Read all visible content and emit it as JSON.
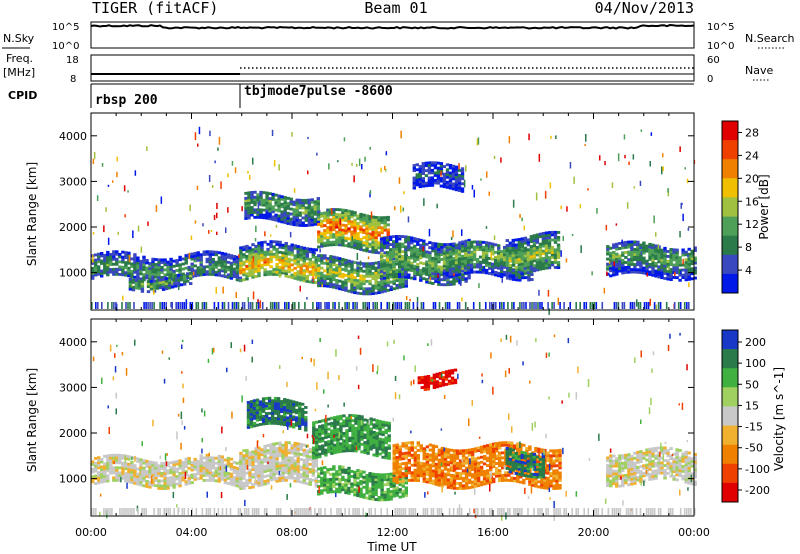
{
  "header": {
    "radar": "TIGER (fitACF)",
    "beam": "Beam 01",
    "date": "04/Nov/2013"
  },
  "aux_panels": {
    "nsky_label": "N.Sky",
    "nsky_ticks": [
      "10^5",
      "10^0"
    ],
    "nsearch_label": "N.Search",
    "nsearch_ticks": [
      "10^5",
      "10^0"
    ],
    "freq_label": "Freq.",
    "freq_unit": "[MHz]",
    "freq_ticks": [
      "18",
      "8"
    ],
    "nave_label": "Nave",
    "nave_ticks": [
      "60",
      "0"
    ],
    "cpid_label": "CPID",
    "cpid_segments": [
      {
        "start_hour": 0,
        "label": "rbsp 200"
      },
      {
        "start_hour": 6,
        "label": "tbjmode7pulse -8600"
      }
    ]
  },
  "chart_data": [
    {
      "type": "heatmap",
      "title": "",
      "xlabel": "Time UT",
      "ylabel": "Slant Range [km]",
      "xlim": [
        0,
        24
      ],
      "ylim": [
        180,
        4500
      ],
      "y_ticks": [
        "1000",
        "2000",
        "3000",
        "4000"
      ],
      "colorbar": {
        "label": "Power [dB]",
        "range": [
          0,
          30
        ],
        "ticks": [
          "4",
          "8",
          "12",
          "16",
          "20",
          "24",
          "28"
        ],
        "colors": [
          "#0018e8",
          "#3a48c0",
          "#2a7a4a",
          "#4ea058",
          "#a0c040",
          "#f0c000",
          "#f08000",
          "#f04000",
          "#e00000"
        ]
      },
      "bands": [
        {
          "start_hour": 0.0,
          "end_hour": 5.9,
          "min_km": 850,
          "max_km": 1400,
          "peak_km": 1050,
          "level": 0.35
        },
        {
          "start_hour": 1.5,
          "end_hour": 4.0,
          "min_km": 650,
          "max_km": 900,
          "peak_km": 780,
          "level": 0.45
        },
        {
          "start_hour": 5.9,
          "end_hour": 9.0,
          "min_km": 850,
          "max_km": 1600,
          "peak_km": 1100,
          "level": 0.7
        },
        {
          "start_hour": 6.1,
          "end_hour": 9.0,
          "min_km": 2100,
          "max_km": 2700,
          "peak_km": 2450,
          "level": 0.4
        },
        {
          "start_hour": 9.0,
          "end_hour": 11.8,
          "min_km": 1500,
          "max_km": 2300,
          "peak_km": 1900,
          "level": 0.8
        },
        {
          "start_hour": 9.0,
          "end_hour": 12.5,
          "min_km": 600,
          "max_km": 1300,
          "peak_km": 950,
          "level": 0.55
        },
        {
          "start_hour": 11.5,
          "end_hour": 15.0,
          "min_km": 800,
          "max_km": 1700,
          "peak_km": 1200,
          "level": 0.45
        },
        {
          "start_hour": 14.0,
          "end_hour": 17.5,
          "min_km": 900,
          "max_km": 1600,
          "peak_km": 1300,
          "level": 0.45
        },
        {
          "start_hour": 16.5,
          "end_hour": 18.6,
          "min_km": 1000,
          "max_km": 1800,
          "peak_km": 1350,
          "level": 0.5
        },
        {
          "start_hour": 20.5,
          "end_hour": 24.0,
          "min_km": 900,
          "max_km": 1600,
          "peak_km": 1300,
          "level": 0.4
        },
        {
          "start_hour": 12.8,
          "end_hour": 14.8,
          "min_km": 2800,
          "max_km": 3300,
          "peak_km": 3100,
          "level": 0.2
        }
      ]
    },
    {
      "type": "heatmap",
      "title": "",
      "xlabel": "Time UT",
      "ylabel": "Slant Range [km]",
      "xlim": [
        0,
        24
      ],
      "ylim": [
        180,
        4500
      ],
      "x_ticks": [
        "00:00",
        "04:00",
        "08:00",
        "12:00",
        "16:00",
        "20:00",
        "00:00"
      ],
      "y_ticks": [
        "1000",
        "2000",
        "3000",
        "4000"
      ],
      "colorbar": {
        "label": "Velocity [m s^-1]",
        "range": [
          -250,
          250
        ],
        "ticks": [
          "200",
          "100",
          "50",
          "15",
          "-15",
          "-50",
          "-100",
          "-200"
        ],
        "colors": [
          "#e00000",
          "#f04000",
          "#f08000",
          "#f0b030",
          "#c8c8c8",
          "#a0d060",
          "#40b040",
          "#2a7a4a",
          "#1838c8"
        ]
      },
      "bands": [
        {
          "start_hour": 0.0,
          "end_hour": 5.9,
          "min_km": 850,
          "max_km": 1450,
          "peak_km": 1100,
          "level": 0.0
        },
        {
          "start_hour": 5.9,
          "end_hour": 9.0,
          "min_km": 850,
          "max_km": 1700,
          "peak_km": 1200,
          "level": 0.0
        },
        {
          "start_hour": 6.2,
          "end_hour": 8.5,
          "min_km": 2100,
          "max_km": 2700,
          "peak_km": 2400,
          "level": -0.7
        },
        {
          "start_hour": 8.8,
          "end_hour": 11.8,
          "min_km": 1500,
          "max_km": 2300,
          "peak_km": 1950,
          "level": -0.55
        },
        {
          "start_hour": 9.0,
          "end_hour": 12.5,
          "min_km": 600,
          "max_km": 1200,
          "peak_km": 850,
          "level": -0.45
        },
        {
          "start_hour": 12.0,
          "end_hour": 18.6,
          "min_km": 850,
          "max_km": 1700,
          "peak_km": 1250,
          "level": 0.45
        },
        {
          "start_hour": 16.5,
          "end_hour": 18.0,
          "min_km": 1100,
          "max_km": 1600,
          "peak_km": 1350,
          "level": -0.7
        },
        {
          "start_hour": 20.5,
          "end_hour": 24.0,
          "min_km": 900,
          "max_km": 1600,
          "peak_km": 1300,
          "level": 0.0
        },
        {
          "start_hour": 13.0,
          "end_hour": 14.5,
          "min_km": 3000,
          "max_km": 3300,
          "peak_km": 3150,
          "level": 0.85
        }
      ]
    }
  ]
}
